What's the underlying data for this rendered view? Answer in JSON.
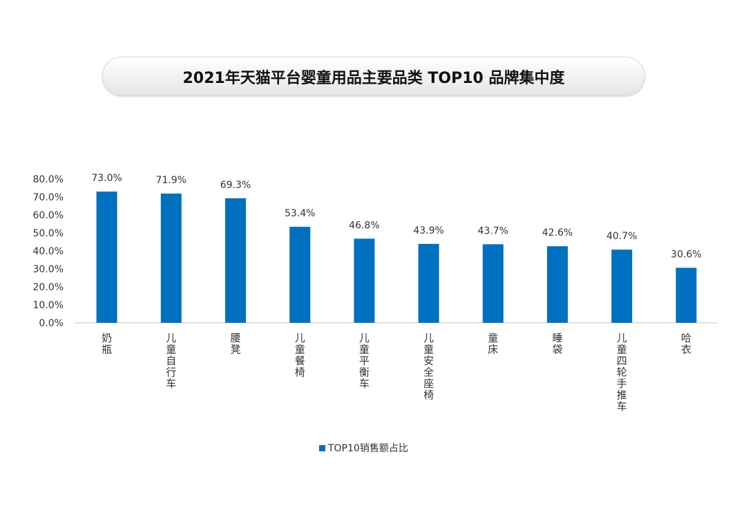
{
  "chart_data": {
    "type": "bar",
    "title": "2021年天猫平台婴童用品主要品类 TOP10 品牌集中度",
    "categories": [
      "奶瓶",
      "儿童自行车",
      "腰凳",
      "儿童餐椅",
      "儿童平衡车",
      "儿童安全座椅",
      "童床",
      "睡袋",
      "儿童四轮手推车",
      "哈衣"
    ],
    "series": [
      {
        "name": "TOP10销售额占比",
        "values": [
          73.0,
          71.9,
          69.3,
          53.4,
          46.8,
          43.9,
          43.7,
          42.6,
          40.7,
          30.6
        ],
        "color": "#0070c0"
      }
    ],
    "data_labels": [
      "73.0%",
      "71.9%",
      "69.3%",
      "53.4%",
      "46.8%",
      "43.9%",
      "43.7%",
      "42.6%",
      "40.7%",
      "30.6%"
    ],
    "yticks": [
      "0.0%",
      "10.0%",
      "20.0%",
      "30.0%",
      "40.0%",
      "50.0%",
      "60.0%",
      "70.0%",
      "80.0%"
    ],
    "ylim": [
      0,
      80
    ],
    "xlabel": "",
    "ylabel": "",
    "grid": false,
    "legend": "bottom"
  }
}
